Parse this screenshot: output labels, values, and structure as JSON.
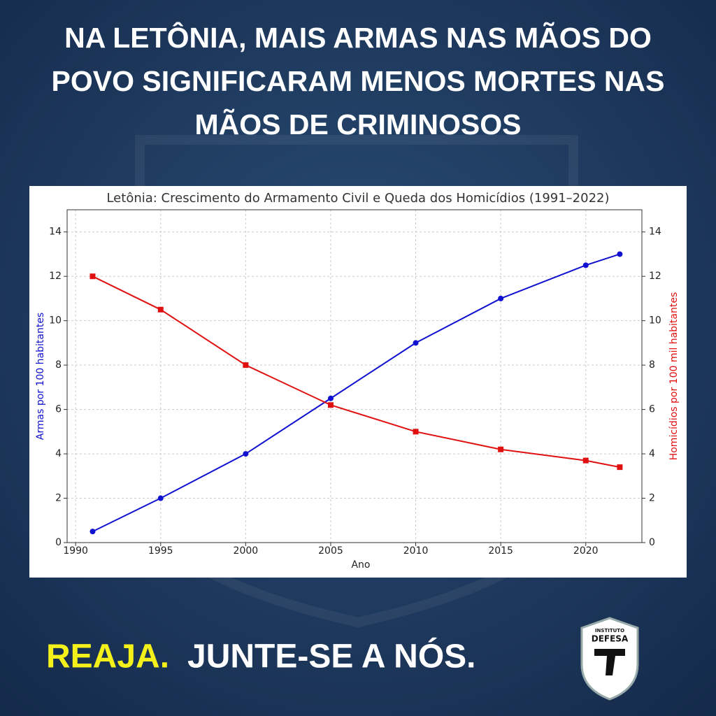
{
  "headline": [
    "NA LETÔNIA, MAIS ARMAS NAS MÃOS DO",
    "POVO SIGNIFICARAM MENOS MORTES NAS",
    "MÃOS DE CRIMINOSOS"
  ],
  "chart_data": {
    "type": "line",
    "title": "Letônia: Crescimento do Armamento Civil e Queda dos Homicídios (1991–2022)",
    "x_label": "Ano",
    "y_label": "Armas por 100 habitantes",
    "y2_label": "Homicídios por 100 mil habitantes",
    "x": [
      1991,
      1995,
      2000,
      2005,
      2010,
      2015,
      2020,
      2022
    ],
    "series": [
      {
        "color": "#1010d0",
        "marker": "circle",
        "values": [
          0.5,
          2,
          4,
          6.5,
          9,
          11,
          12.5,
          13
        ]
      },
      {
        "color": "#e01010",
        "marker": "square",
        "axis": "y2",
        "values": [
          12,
          10.5,
          8,
          6.2,
          5,
          4.2,
          3.7,
          3.4
        ]
      }
    ],
    "xlim": [
      1989.5,
      2023.3
    ],
    "xticks": [
      1990,
      1995,
      2000,
      2005,
      2010,
      2015,
      2020
    ],
    "ylim": [
      0,
      15
    ],
    "yticks": [
      0,
      2,
      4,
      6,
      8,
      10,
      12,
      14
    ],
    "y2lim": [
      0,
      15
    ],
    "y2ticks": [
      0,
      2,
      4,
      6,
      8,
      10,
      12,
      14
    ],
    "grid": true
  },
  "footer": {
    "call": "REAJA.",
    "text": "JUNTE-SE A NÓS."
  },
  "logo": {
    "top": "INSTITUTO",
    "name": "DEFESA"
  }
}
